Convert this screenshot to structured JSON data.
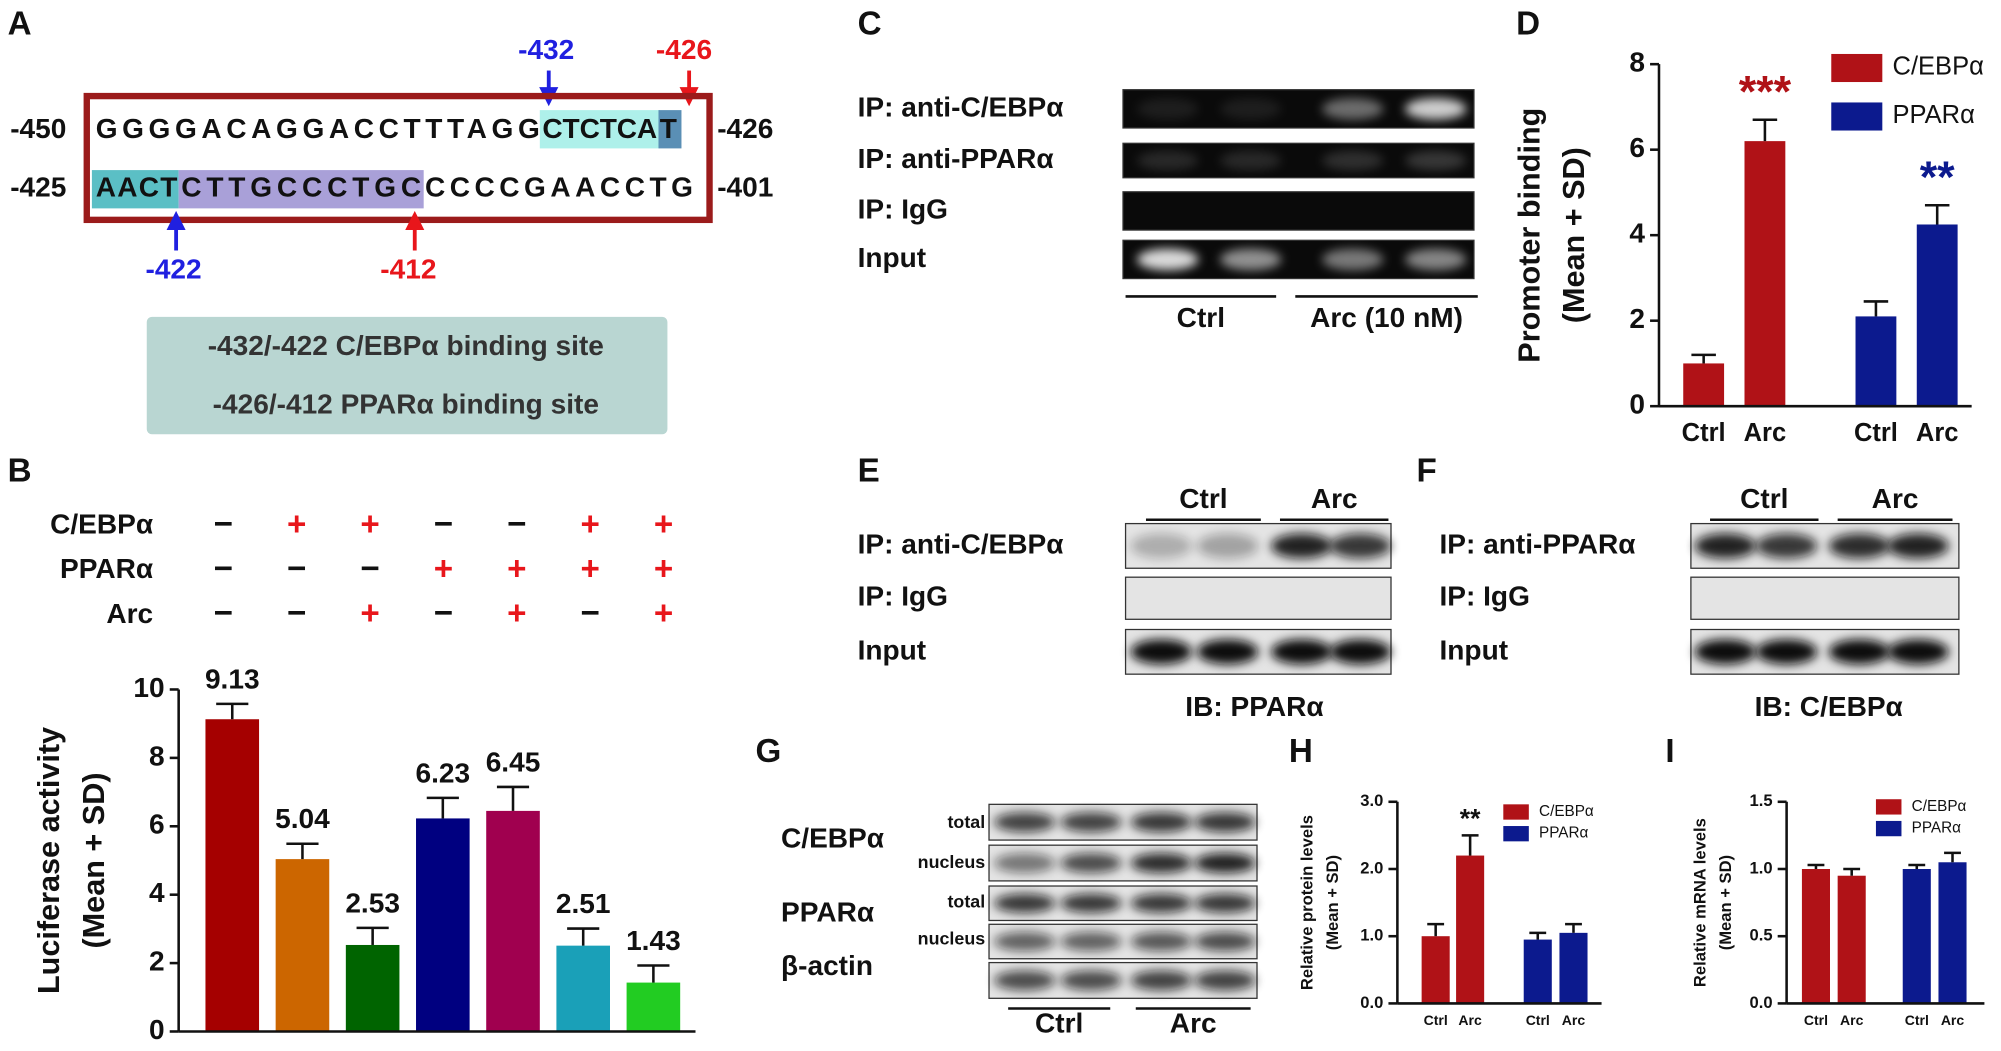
{
  "panels": {
    "A": {
      "letter": "A",
      "start1": "-450",
      "end1": "-426",
      "start2": "-425",
      "end2": "-401",
      "row1": [
        "GGGGACAGGACCTTTAGG",
        "CTCTCA",
        "T"
      ],
      "row2": [
        "AACT",
        "CTTGCCCTGC",
        "CCCCGAACCTG"
      ],
      "arrows": [
        "-432",
        "-426",
        "-422",
        "-412"
      ],
      "sites": [
        "-432/-422 C/EBPα binding site",
        "-426/-412 PPARα binding site"
      ]
    },
    "C": {
      "letter": "C",
      "rows": [
        "IP: anti-C/EBPα",
        "IP: anti-PPARα",
        "IP: IgG",
        "Input"
      ],
      "groups": [
        "Ctrl",
        "Arc (10 nM)"
      ]
    },
    "E": {
      "letter": "E",
      "rows": [
        "IP: anti-C/EBPα",
        "IP: IgG",
        "Input"
      ],
      "groups": [
        "Ctrl",
        "Arc"
      ],
      "footer": "IB: PPARα"
    },
    "F": {
      "letter": "F",
      "rows": [
        "IP: anti-PPARα",
        "IP: IgG",
        "Input"
      ],
      "groups": [
        "Ctrl",
        "Arc"
      ],
      "footer": "IB: C/EBPα"
    },
    "G": {
      "letter": "G",
      "proteins": [
        "C/EBPα",
        "PPARα",
        "β-actin"
      ],
      "fractions": [
        "total",
        "nucleus",
        "total",
        "nucleus"
      ],
      "groups": [
        "Ctrl",
        "Arc"
      ]
    }
  },
  "chart_data": [
    {
      "panel": "B",
      "type": "bar",
      "conditions": [
        {
          "name": "C/EBPα",
          "signs": [
            "−",
            "+",
            "+",
            "−",
            "−",
            "+",
            "+"
          ]
        },
        {
          "name": "PPARα",
          "signs": [
            "−",
            "−",
            "−",
            "+",
            "+",
            "+",
            "+"
          ]
        },
        {
          "name": "Arc",
          "signs": [
            "−",
            "−",
            "+",
            "−",
            "+",
            "−",
            "+"
          ]
        }
      ],
      "sign_colors": {
        "+": "#e8161b",
        "−": "#111111"
      },
      "values": [
        9.13,
        5.04,
        2.53,
        6.23,
        6.45,
        2.51,
        1.43
      ],
      "errors": [
        0.45,
        0.45,
        0.5,
        0.6,
        0.7,
        0.5,
        0.5
      ],
      "colors": [
        "#a50000",
        "#cc6600",
        "#006400",
        "#000080",
        "#a0004f",
        "#1aa0b8",
        "#22cc22"
      ],
      "ylim": [
        0,
        10
      ],
      "yticks": [
        0,
        2,
        4,
        6,
        8,
        10
      ],
      "ylabel": [
        "Luciferase activity",
        "(Mean + SD)"
      ]
    },
    {
      "panel": "D",
      "type": "grouped_bar",
      "categories": [
        "Ctrl",
        "Arc"
      ],
      "series": [
        {
          "name": "C/EBPα",
          "color": "#b01217",
          "values": [
            1.0,
            6.2
          ],
          "errors": [
            0.2,
            0.5
          ]
        },
        {
          "name": "PPARα",
          "color": "#0c1a8e",
          "values": [
            2.1,
            4.25
          ],
          "errors": [
            0.35,
            0.45
          ]
        }
      ],
      "annotations": [
        {
          "text": "***",
          "series": 0,
          "index": 1,
          "color": "#b01217"
        },
        {
          "text": "**",
          "series": 1,
          "index": 1,
          "color": "#0c1a8e"
        }
      ],
      "ylim": [
        0,
        8
      ],
      "yticks": [
        0,
        2,
        4,
        6,
        8
      ],
      "ylabel": [
        "Promoter binding",
        "(Mean + SD)"
      ]
    },
    {
      "panel": "H",
      "type": "grouped_bar",
      "categories": [
        "Ctrl",
        "Arc"
      ],
      "series": [
        {
          "name": "C/EBPα",
          "color": "#b01217",
          "values": [
            1.0,
            2.2
          ],
          "errors": [
            0.18,
            0.3
          ]
        },
        {
          "name": "PPARα",
          "color": "#0c1a8e",
          "values": [
            0.95,
            1.05
          ],
          "errors": [
            0.1,
            0.13
          ]
        }
      ],
      "annotations": [
        {
          "text": "**",
          "series": 0,
          "index": 1,
          "color": "#111111"
        }
      ],
      "ylim": [
        0,
        3
      ],
      "yticks": [
        {
          "value": 0,
          "label": "0.0"
        },
        {
          "value": 1,
          "label": "1.0"
        },
        {
          "value": 2,
          "label": "2.0"
        },
        {
          "value": 3,
          "label": "3.0"
        }
      ],
      "ylabel": [
        "Relative protein levels",
        "(Mean + SD)"
      ]
    },
    {
      "panel": "I",
      "type": "grouped_bar",
      "categories": [
        "Ctrl",
        "Arc"
      ],
      "series": [
        {
          "name": "C/EBPα",
          "color": "#b01217",
          "values": [
            1.0,
            0.95
          ],
          "errors": [
            0.03,
            0.05
          ]
        },
        {
          "name": "PPARα",
          "color": "#0c1a8e",
          "values": [
            1.0,
            1.05
          ],
          "errors": [
            0.03,
            0.07
          ]
        }
      ],
      "annotations": [],
      "ylim": [
        0,
        1.5
      ],
      "yticks": [
        {
          "value": 0,
          "label": "0.0"
        },
        {
          "value": 0.5,
          "label": "0.5"
        },
        {
          "value": 1,
          "label": "1.0"
        },
        {
          "value": 1.5,
          "label": "1.5"
        }
      ],
      "ylabel": [
        "Relative mRNA levels",
        "(Mean + SD)"
      ]
    }
  ]
}
